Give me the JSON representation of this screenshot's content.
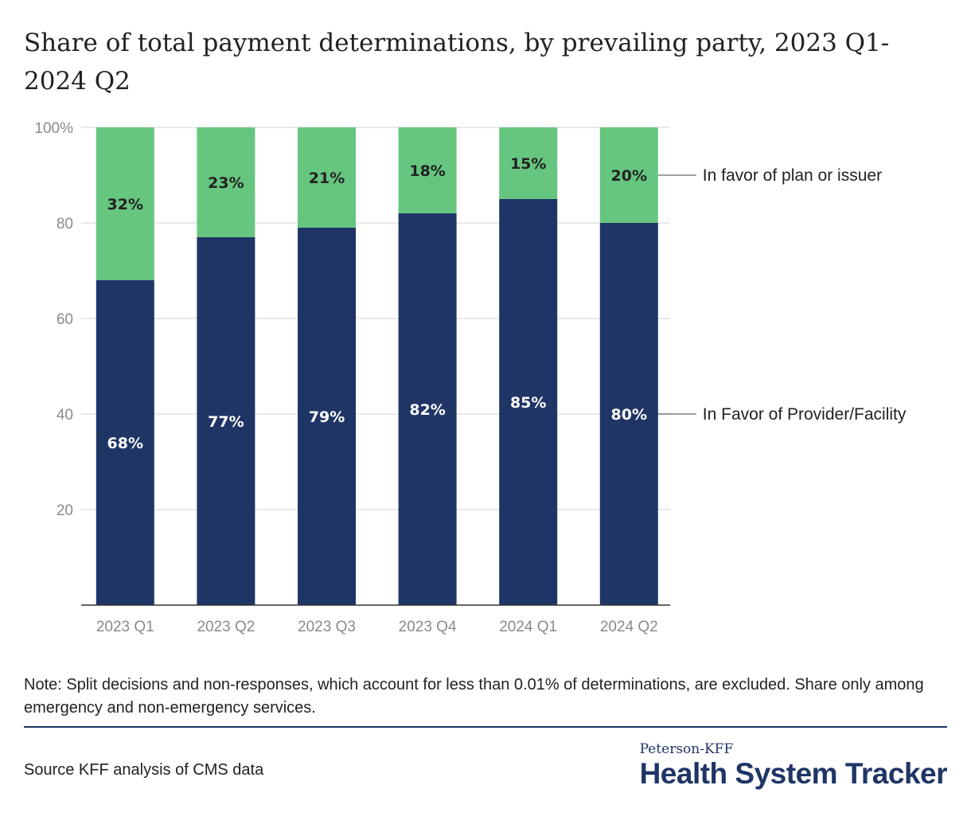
{
  "title": "Share of total payment determinations, by prevailing party, 2023 Q1-2024 Q2",
  "note": "Note: Split decisions and non-responses, which account for less than 0.01% of determinations, are excluded. Share only among emergency and non-emergency services.",
  "source": "Source KFF analysis of CMS data",
  "logo": {
    "top": "Peterson-KFF",
    "main": "Health System Tracker"
  },
  "colors": {
    "provider": "#1f3566",
    "plan": "#66c680",
    "grid": "#e2e2e2",
    "axis": "#333333"
  },
  "chart_data": {
    "type": "bar",
    "stacked": true,
    "categories": [
      "2023 Q1",
      "2023 Q2",
      "2023 Q3",
      "2023 Q4",
      "2024 Q1",
      "2024 Q2"
    ],
    "series": [
      {
        "name": "In Favor of Provider/Facility",
        "values": [
          68,
          77,
          79,
          82,
          85,
          80
        ],
        "labels": [
          "68%",
          "77%",
          "79%",
          "82%",
          "85%",
          "80%"
        ]
      },
      {
        "name": "In favor of plan or issuer",
        "values": [
          32,
          23,
          21,
          18,
          15,
          20
        ],
        "labels": [
          "32%",
          "23%",
          "21%",
          "18%",
          "15%",
          "20%"
        ]
      }
    ],
    "ylim": [
      0,
      100
    ],
    "yticks": [
      20,
      40,
      60,
      80,
      100
    ],
    "ytick_labels": [
      "20",
      "40",
      "60",
      "80",
      "100%"
    ],
    "grid": true,
    "legend": "right, labelled at last bar"
  }
}
